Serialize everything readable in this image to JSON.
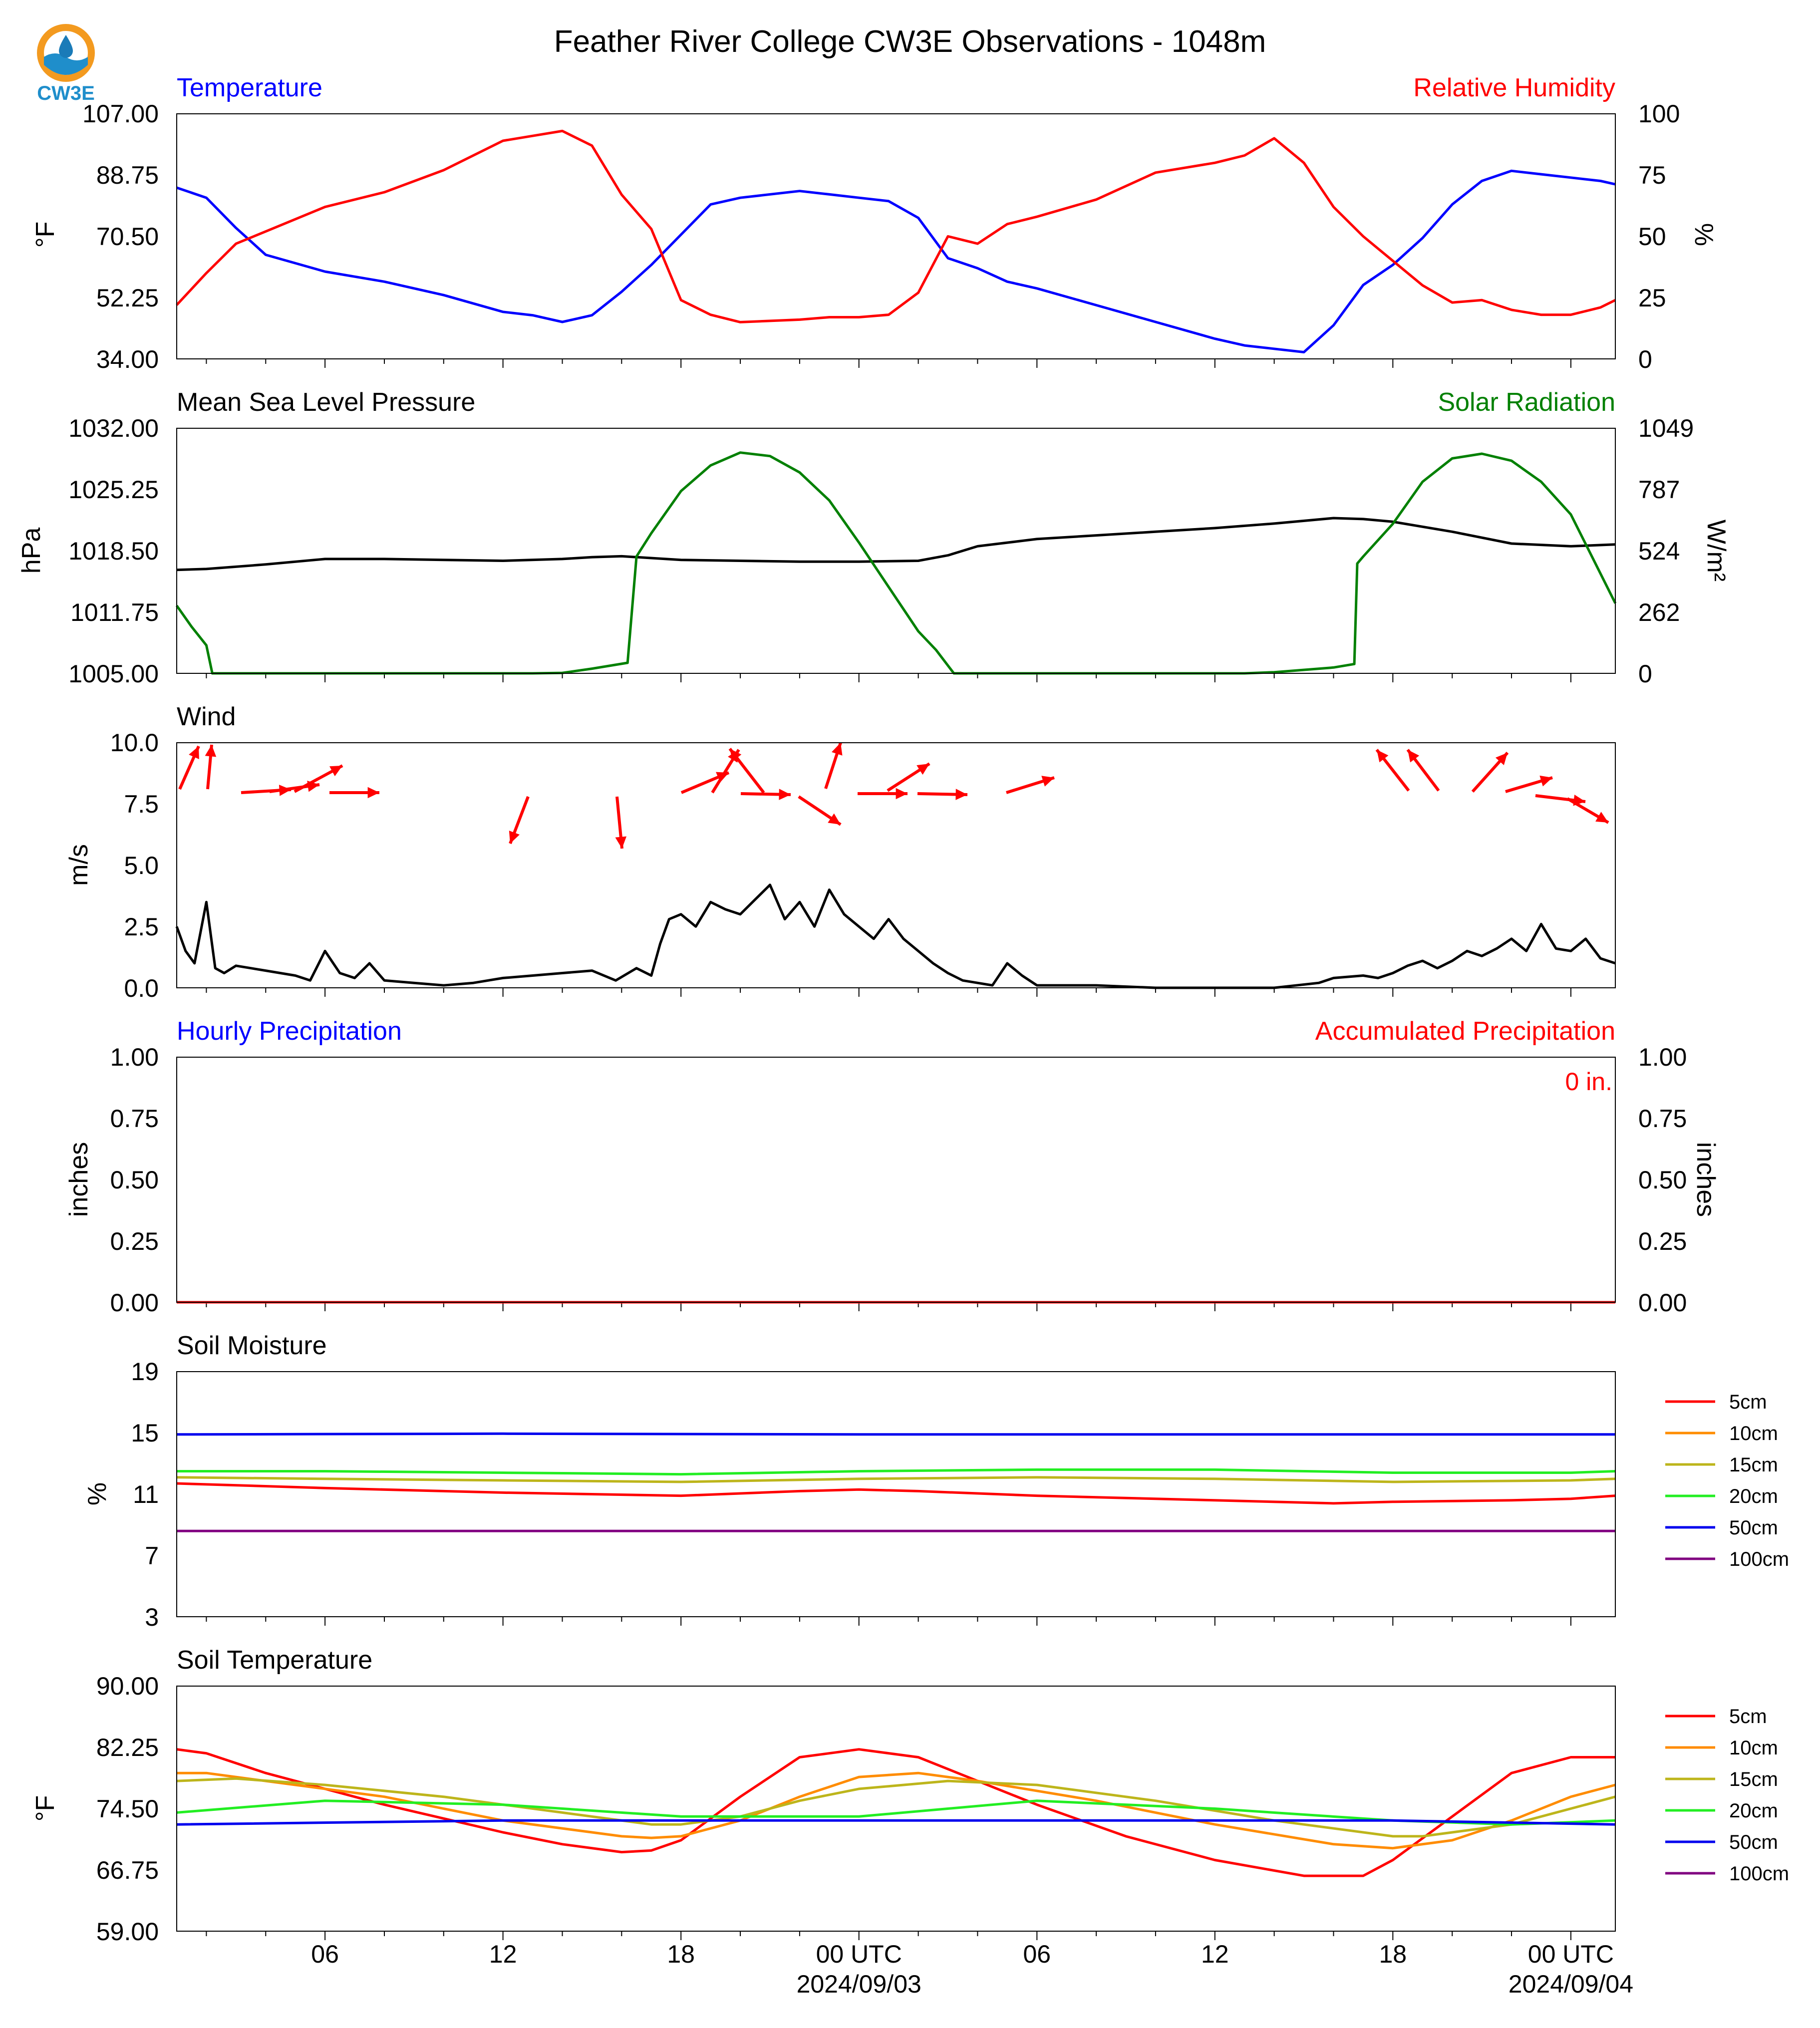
{
  "header": {
    "title": "Feather River College CW3E Observations - 1048m",
    "logo_text": "CW3E"
  },
  "colors": {
    "temperature": "#0000ff",
    "humidity": "#ff0000",
    "pressure": "#000000",
    "solar": "#008000",
    "wind": "#000000",
    "wind_arrows": "#ff0000",
    "hourly_precip_title": "#0000ff",
    "accum_precip": "#ff0000",
    "soil_5cm": "#ff0000",
    "soil_10cm": "#ff8c00",
    "soil_15cm": "#bdb51b",
    "soil_20cm": "#22ee22",
    "soil_50cm": "#0000ee",
    "soil_100cm": "#800080"
  },
  "time_axis": {
    "hours_start": 1,
    "hours_end": 49.5,
    "tick_labels": [
      {
        "hour": 6,
        "label": "06"
      },
      {
        "hour": 12,
        "label": "12"
      },
      {
        "hour": 18,
        "label": "18"
      },
      {
        "hour": 24,
        "label": "00 UTC"
      },
      {
        "hour": 30,
        "label": "06"
      },
      {
        "hour": 36,
        "label": "12"
      },
      {
        "hour": 42,
        "label": "18"
      },
      {
        "hour": 48,
        "label": "00 UTC"
      }
    ],
    "date_labels": [
      {
        "hour": 24,
        "label": "2024/09/03"
      },
      {
        "hour": 48,
        "label": "2024/09/04"
      }
    ]
  },
  "panels": {
    "temp_rh": {
      "left_title": "Temperature",
      "right_title": "Relative Humidity",
      "left_ylabel": "°F",
      "right_ylabel": "%",
      "left_ticks": [
        "34.00",
        "52.25",
        "70.50",
        "88.75",
        "107.00"
      ],
      "right_ticks": [
        "0",
        "25",
        "50",
        "75",
        "100"
      ]
    },
    "pressure_solar": {
      "left_title": "Mean Sea Level Pressure",
      "right_title": "Solar Radiation",
      "left_ylabel": "hPa",
      "right_ylabel": "W/m²",
      "left_ticks": [
        "1005.00",
        "1011.75",
        "1018.50",
        "1025.25",
        "1032.00"
      ],
      "right_ticks": [
        "0",
        "262",
        "524",
        "787",
        "1049"
      ]
    },
    "wind": {
      "left_title": "Wind",
      "left_ylabel": "m/s",
      "left_ticks": [
        "0.0",
        "2.5",
        "5.0",
        "7.5",
        "10.0"
      ]
    },
    "precip": {
      "left_title": "Hourly Precipitation",
      "right_title": "Accumulated Precipitation",
      "left_ylabel": "inches",
      "right_ylabel": "inches",
      "left_ticks": [
        "0.00",
        "0.25",
        "0.50",
        "0.75",
        "1.00"
      ],
      "right_ticks": [
        "0.00",
        "0.25",
        "0.50",
        "0.75",
        "1.00"
      ],
      "total_label": "0 in."
    },
    "soil_moisture": {
      "left_title": "Soil Moisture",
      "left_ylabel": "%",
      "left_ticks": [
        "3",
        "7",
        "11",
        "15",
        "19"
      ],
      "legend": [
        "5cm",
        "10cm",
        "15cm",
        "20cm",
        "50cm",
        "100cm"
      ]
    },
    "soil_temp": {
      "left_title": "Soil Temperature",
      "left_ylabel": "°F",
      "left_ticks": [
        "59.00",
        "66.75",
        "74.50",
        "82.25",
        "90.00"
      ],
      "legend": [
        "5cm",
        "10cm",
        "15cm",
        "20cm",
        "50cm",
        "100cm"
      ]
    }
  },
  "chart_data": [
    {
      "type": "line",
      "title": "Temperature / Relative Humidity",
      "x_units": "hours since 2024/09/02 00 UTC",
      "ylim": [
        34,
        107
      ],
      "y2lim": [
        0,
        100
      ],
      "series": [
        {
          "name": "Temperature",
          "axis": "left",
          "color": "#0000ff",
          "x": [
            1,
            2,
            3,
            4,
            6,
            8,
            10,
            12,
            13,
            14,
            15,
            16,
            17,
            18,
            19,
            20,
            22,
            23,
            24,
            25,
            26,
            27,
            28,
            29,
            30,
            32,
            34,
            36,
            37,
            38,
            39,
            40,
            41,
            42,
            43,
            44,
            45,
            46,
            47,
            48,
            49,
            49.5
          ],
          "y": [
            85,
            82,
            73,
            65,
            60,
            57,
            53,
            48,
            47,
            45,
            47,
            54,
            62,
            71,
            80,
            82,
            84,
            83,
            82,
            81,
            76,
            64,
            61,
            57,
            55,
            50,
            45,
            40,
            38,
            37,
            36,
            44,
            56,
            62,
            70,
            80,
            87,
            90,
            89,
            88,
            87,
            86
          ]
        },
        {
          "name": "Relative Humidity",
          "axis": "right",
          "color": "#ff0000",
          "x": [
            1,
            2,
            3,
            4,
            6,
            8,
            10,
            12,
            13,
            14,
            15,
            16,
            17,
            18,
            19,
            20,
            22,
            23,
            24,
            25,
            26,
            27,
            28,
            29,
            30,
            32,
            34,
            36,
            37,
            38,
            39,
            40,
            41,
            42,
            43,
            44,
            45,
            46,
            47,
            48,
            49,
            49.5
          ],
          "y": [
            22,
            35,
            47,
            52,
            62,
            68,
            77,
            89,
            91,
            93,
            87,
            67,
            53,
            24,
            18,
            15,
            16,
            17,
            17,
            18,
            27,
            50,
            47,
            55,
            58,
            65,
            76,
            80,
            83,
            90,
            80,
            62,
            50,
            40,
            30,
            23,
            24,
            20,
            18,
            18,
            21,
            24
          ]
        }
      ]
    },
    {
      "type": "line",
      "title": "Mean Sea Level Pressure / Solar Radiation",
      "x_units": "hours since 2024/09/02 00 UTC",
      "ylim": [
        1005,
        1032
      ],
      "y2lim": [
        0,
        1049
      ],
      "series": [
        {
          "name": "Mean Sea Level Pressure",
          "axis": "left",
          "color": "#000000",
          "x": [
            1,
            2,
            4,
            6,
            8,
            10,
            12,
            14,
            15,
            16,
            18,
            20,
            22,
            24,
            26,
            27,
            28,
            30,
            32,
            34,
            36,
            38,
            40,
            41,
            42,
            44,
            46,
            48,
            49.5
          ],
          "y": [
            1016.4,
            1016.5,
            1017,
            1017.6,
            1017.6,
            1017.5,
            1017.4,
            1017.6,
            1017.8,
            1017.9,
            1017.5,
            1017.4,
            1017.3,
            1017.3,
            1017.4,
            1018.0,
            1019.0,
            1019.8,
            1020.2,
            1020.6,
            1021.0,
            1021.5,
            1022.1,
            1022.0,
            1021.7,
            1020.6,
            1019.3,
            1019.0,
            1019.2
          ]
        },
        {
          "name": "Solar Radiation",
          "axis": "right",
          "color": "#008000",
          "x": [
            1,
            1.5,
            2,
            2.2,
            3,
            6,
            10,
            13,
            14,
            15,
            16.2,
            16.5,
            16.6,
            17,
            18,
            19,
            20,
            21,
            22,
            23,
            24,
            25,
            26,
            26.6,
            27.2,
            30,
            34,
            37,
            38,
            40,
            40.7,
            40.8,
            41,
            42,
            43,
            44,
            45,
            46,
            47,
            48,
            49.5
          ],
          "y": [
            290,
            200,
            120,
            0,
            0,
            0,
            0,
            0,
            2,
            20,
            45,
            500,
            520,
            600,
            780,
            890,
            945,
            930,
            860,
            740,
            560,
            370,
            180,
            100,
            0,
            0,
            0,
            0,
            5,
            25,
            40,
            470,
            500,
            640,
            820,
            920,
            940,
            910,
            820,
            680,
            300
          ]
        }
      ]
    },
    {
      "type": "line",
      "title": "Wind",
      "x_units": "hours since 2024/09/02 00 UTC",
      "ylim": [
        0,
        10
      ],
      "series": [
        {
          "name": "Wind speed",
          "axis": "left",
          "color": "#000000",
          "x": [
            1,
            1.3,
            1.6,
            2,
            2.3,
            2.6,
            3,
            4,
            5,
            5.5,
            6,
            6.5,
            7,
            7.5,
            8,
            9,
            10,
            11,
            12,
            13,
            14,
            15,
            15.8,
            16.5,
            17,
            17.3,
            17.6,
            18,
            18.5,
            19,
            19.5,
            20,
            20.5,
            21,
            21.5,
            22,
            22.5,
            23,
            23.5,
            24,
            24.5,
            25,
            25.5,
            26,
            26.5,
            27,
            27.5,
            28,
            28.5,
            29,
            29.5,
            30,
            30.5,
            31,
            32,
            34,
            36,
            38,
            39.5,
            40,
            41,
            41.5,
            42,
            42.5,
            43,
            43.5,
            44,
            44.5,
            45,
            45.5,
            46,
            46.5,
            47,
            47.5,
            48,
            48.5,
            49,
            49.5
          ],
          "y": [
            2.5,
            1.5,
            1.0,
            3.5,
            0.8,
            0.6,
            0.9,
            0.7,
            0.5,
            0.3,
            1.5,
            0.6,
            0.4,
            1.0,
            0.3,
            0.2,
            0.1,
            0.2,
            0.4,
            0.5,
            0.6,
            0.7,
            0.3,
            0.8,
            0.5,
            1.8,
            2.8,
            3.0,
            2.5,
            3.5,
            3.2,
            3.0,
            3.6,
            4.2,
            2.8,
            3.5,
            2.5,
            4.0,
            3.0,
            2.5,
            2.0,
            2.8,
            2.0,
            1.5,
            1.0,
            0.6,
            0.3,
            0.2,
            0.1,
            1.0,
            0.5,
            0.1,
            0.1,
            0.1,
            0.1,
            0,
            0,
            0,
            0.2,
            0.4,
            0.5,
            0.4,
            0.6,
            0.9,
            1.1,
            0.8,
            1.1,
            1.5,
            1.3,
            1.6,
            2.0,
            1.5,
            2.6,
            1.6,
            1.5,
            2.0,
            1.2,
            1.0
          ]
        }
      ],
      "direction_arrows": {
        "color": "#ff0000"
      }
    },
    {
      "type": "line",
      "title": "Hourly Precipitation / Accumulated Precipitation",
      "x_units": "hours since 2024/09/02 00 UTC",
      "ylim": [
        0,
        1
      ],
      "y2lim": [
        0,
        1
      ],
      "series": [
        {
          "name": "Hourly Precipitation",
          "axis": "left",
          "color": "#0000ff",
          "x": [
            1,
            49.5
          ],
          "y": [
            0,
            0
          ]
        },
        {
          "name": "Accumulated Precipitation",
          "axis": "right",
          "color": "#ff0000",
          "x": [
            1,
            49.5
          ],
          "y": [
            0,
            0
          ]
        }
      ]
    },
    {
      "type": "line",
      "title": "Soil Moisture",
      "x_units": "hours since 2024/09/02 00 UTC",
      "ylim": [
        3,
        19
      ],
      "series": [
        {
          "name": "5cm",
          "color": "#ff0000",
          "x": [
            1,
            6,
            12,
            18,
            22,
            24,
            26,
            30,
            36,
            40,
            42,
            46,
            48,
            49.5
          ],
          "y": [
            11.7,
            11.4,
            11.1,
            10.9,
            11.2,
            11.3,
            11.2,
            10.9,
            10.6,
            10.4,
            10.5,
            10.6,
            10.7,
            10.9
          ]
        },
        {
          "name": "10cm",
          "color": "#ff8c00",
          "x": [],
          "y": []
        },
        {
          "name": "15cm",
          "color": "#bdb51b",
          "x": [
            1,
            6,
            12,
            18,
            24,
            30,
            36,
            42,
            48,
            49.5
          ],
          "y": [
            12.1,
            12.0,
            11.9,
            11.8,
            12.0,
            12.1,
            12.0,
            11.8,
            11.9,
            12.0
          ]
        },
        {
          "name": "20cm",
          "color": "#22ee22",
          "x": [
            1,
            6,
            12,
            18,
            24,
            30,
            36,
            42,
            48,
            49.5
          ],
          "y": [
            12.5,
            12.5,
            12.4,
            12.3,
            12.5,
            12.6,
            12.6,
            12.4,
            12.4,
            12.5
          ]
        },
        {
          "name": "50cm",
          "color": "#0000ee",
          "x": [
            1,
            12,
            24,
            36,
            49.5
          ],
          "y": [
            14.9,
            14.95,
            14.9,
            14.9,
            14.9
          ]
        },
        {
          "name": "100cm",
          "color": "#800080",
          "x": [
            1,
            49.5
          ],
          "y": [
            8.6,
            8.6
          ]
        }
      ]
    },
    {
      "type": "line",
      "title": "Soil Temperature",
      "x_units": "hours since 2024/09/02 00 UTC",
      "ylim": [
        59,
        90
      ],
      "series": [
        {
          "name": "5cm",
          "color": "#ff0000",
          "x": [
            1,
            2,
            4,
            8,
            12,
            14,
            16,
            17,
            18,
            20,
            22,
            24,
            26,
            28,
            30,
            33,
            36,
            39,
            41,
            42,
            44,
            46,
            48,
            49.5
          ],
          "y": [
            82,
            81.5,
            79,
            75,
            71.5,
            70,
            69,
            69.2,
            70.5,
            76,
            81,
            82,
            81,
            78,
            75,
            71,
            68,
            66,
            66,
            68,
            73.5,
            79,
            81,
            81
          ]
        },
        {
          "name": "10cm",
          "color": "#ff8c00",
          "x": [
            1,
            2,
            4,
            8,
            12,
            16,
            17,
            18,
            20,
            22,
            24,
            26,
            28,
            32,
            36,
            40,
            42,
            44,
            46,
            48,
            49.5
          ],
          "y": [
            79,
            79,
            78,
            76,
            73,
            71,
            70.8,
            71,
            73,
            76,
            78.5,
            79,
            78,
            75.5,
            72.5,
            70,
            69.5,
            70.5,
            73,
            76,
            77.5
          ]
        },
        {
          "name": "15cm",
          "color": "#bdb51b",
          "x": [
            1,
            3,
            6,
            10,
            14,
            17,
            18,
            20,
            22,
            24,
            27,
            30,
            34,
            38,
            42,
            43,
            46,
            49.5
          ],
          "y": [
            78,
            78.3,
            77.5,
            76,
            74,
            72.5,
            72.5,
            73.5,
            75.5,
            77,
            78,
            77.5,
            75.5,
            73,
            71,
            71,
            72.5,
            76
          ]
        },
        {
          "name": "20cm",
          "color": "#22ee22",
          "x": [
            1,
            6,
            12,
            18,
            24,
            30,
            36,
            42,
            46,
            49.5
          ],
          "y": [
            74,
            75.5,
            75,
            73.5,
            73.5,
            75.5,
            74.5,
            73,
            72.5,
            73
          ]
        },
        {
          "name": "50cm",
          "color": "#0000ee",
          "x": [
            1,
            12,
            24,
            36,
            42,
            49.5
          ],
          "y": [
            72.5,
            73,
            73,
            73,
            73,
            72.5
          ]
        },
        {
          "name": "100cm",
          "color": "#800080",
          "x": [],
          "y": []
        }
      ]
    }
  ]
}
